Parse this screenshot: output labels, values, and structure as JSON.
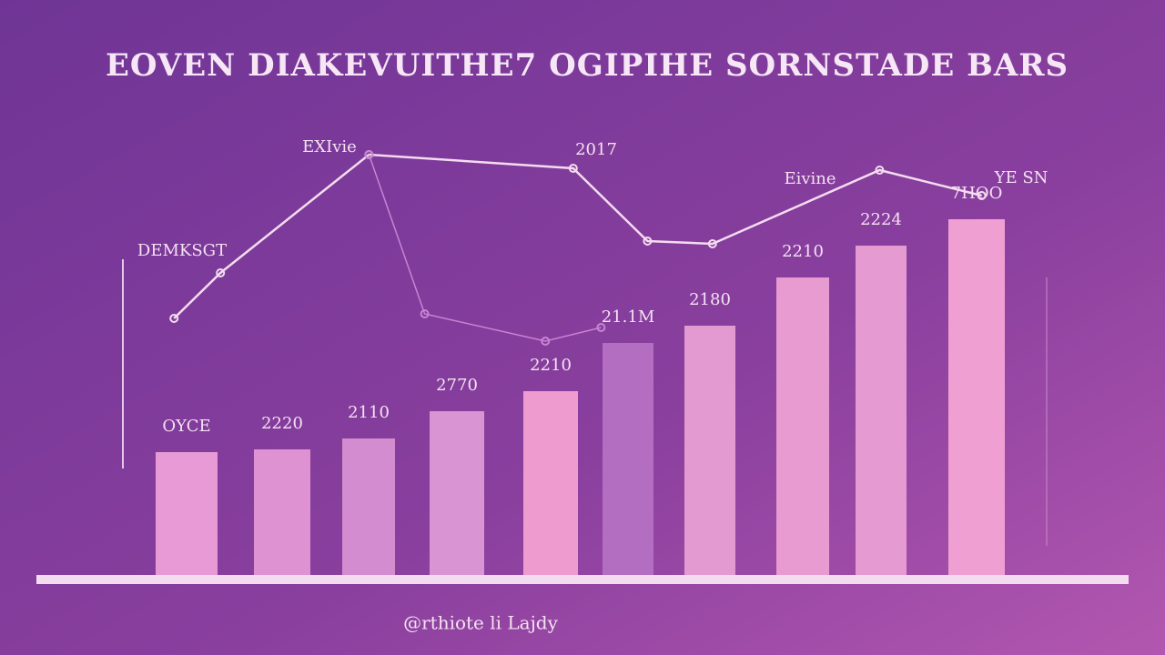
{
  "chart_data": {
    "type": "bar",
    "title": "EOVEN DIAKEVUITHE7 OGIPIHE SORNSTADE BARS",
    "x_label": "@rthiote li Lajdy",
    "categories": [
      null,
      null,
      null,
      null,
      null,
      null,
      null,
      null,
      null,
      null
    ],
    "values": [
      135,
      138,
      150,
      180,
      202,
      255,
      274,
      327,
      362,
      391
    ],
    "bar_labels": [
      "OYCE",
      "2220",
      "2110",
      "2770",
      "2210",
      "21.1M",
      "2180",
      "2210",
      "2224",
      "7HOO"
    ],
    "colors": [
      "#e79ad6",
      "#de92d2",
      "#d28ccf",
      "#d994d4",
      "#ee9cd0",
      "#b36ec2",
      "#e39ad0",
      "#e79bd0",
      "#e59bd2",
      "#ef9fd2"
    ],
    "ylim": [
      0,
      500
    ],
    "xlim": [
      0,
      10
    ],
    "lines": [
      {
        "color": "#f4dcef",
        "x": [
          0.6,
          1.1,
          2.7,
          4.9,
          5.7,
          6.4,
          8.2,
          9.3
        ],
        "values": [
          282,
          332,
          462,
          447,
          367,
          364,
          445,
          417
        ]
      },
      {
        "color": "#c884d4",
        "x": [
          2.7,
          3.3,
          4.6,
          5.2
        ],
        "values": [
          462,
          287,
          257,
          272
        ]
      }
    ],
    "annotations": [
      "DEMKSGT",
      "EXIvie",
      "2017",
      "Eivine",
      "YE SN"
    ]
  }
}
